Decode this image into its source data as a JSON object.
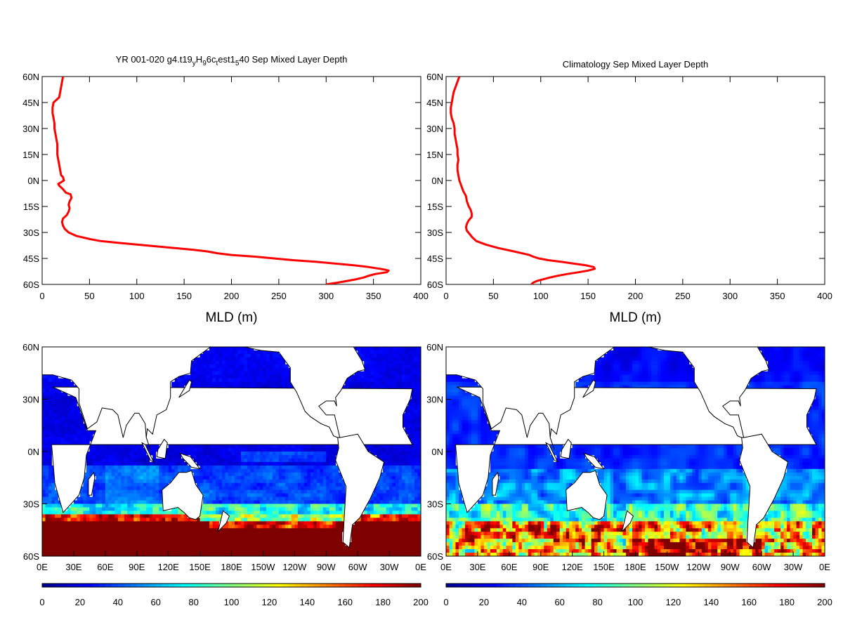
{
  "colors": {
    "profile_line": "#ff0000",
    "axis": "#000000",
    "land": "#ffffff",
    "coast": "#000000",
    "colormap": [
      "#00008f",
      "#0000ff",
      "#007fff",
      "#00ffff",
      "#7fff7f",
      "#ffff00",
      "#ff7f00",
      "#ff0000",
      "#7f0000"
    ]
  },
  "chart_data": [
    {
      "id": "model-profile",
      "type": "line",
      "title": "YR 001-020 g4.t19_H_6c_est1_40 Sep Mixed Layer Depth",
      "title_parts": [
        {
          "text": "YR 001-020 g4.t19",
          "sub": false
        },
        {
          "text": "y",
          "sub": true
        },
        {
          "text": "H",
          "sub": false
        },
        {
          "text": "9",
          "sub": true
        },
        {
          "text": "6c",
          "sub": false
        },
        {
          "text": "t",
          "sub": true
        },
        {
          "text": "est1",
          "sub": false
        },
        {
          "text": "5",
          "sub": true
        },
        {
          "text": "40 Sep Mixed Layer Depth",
          "sub": false
        }
      ],
      "xlabel": "MLD (m)",
      "ylabel": "",
      "xlim": [
        0,
        400
      ],
      "ylim": [
        -60,
        60
      ],
      "x_ticks": [
        "0",
        "50",
        "100",
        "150",
        "200",
        "250",
        "300",
        "350",
        "400"
      ],
      "y_ticks": [
        "60N",
        "45N",
        "30N",
        "15N",
        "0N",
        "15S",
        "30S",
        "45S",
        "60S"
      ],
      "lat": [
        60,
        57,
        54,
        51,
        48,
        45,
        42,
        39,
        36,
        33,
        30,
        27,
        24,
        21,
        18,
        15,
        12,
        9,
        6,
        3,
        2,
        0,
        -1,
        -2,
        -3,
        -5,
        -7,
        -8,
        -10,
        -12,
        -14,
        -16,
        -18,
        -20,
        -22,
        -24,
        -26,
        -28,
        -30,
        -32,
        -34,
        -35,
        -36,
        -37,
        -38,
        -39,
        -40,
        -41,
        -42,
        -43,
        -44,
        -45,
        -46,
        -47,
        -48,
        -49,
        -50,
        -51,
        -51.5,
        -52,
        -53,
        -54,
        -55,
        -56,
        -57,
        -58,
        -59,
        -60
      ],
      "mld": [
        22,
        21,
        20,
        19,
        18,
        12,
        11,
        11,
        12,
        13,
        13,
        14,
        15,
        16,
        16,
        16,
        17,
        18,
        19,
        20,
        22,
        23,
        20,
        17,
        18,
        22,
        25,
        30,
        31,
        29,
        28,
        29,
        28,
        26,
        22,
        21,
        22,
        24,
        28,
        36,
        52,
        62,
        80,
        100,
        120,
        140,
        160,
        175,
        185,
        200,
        225,
        245,
        265,
        290,
        310,
        330,
        345,
        357,
        362,
        366,
        364,
        352,
        345,
        340,
        332,
        322,
        312,
        300
      ]
    },
    {
      "id": "climatology-profile",
      "type": "line",
      "title": "Climatology Sep Mixed Layer Depth",
      "xlabel": "MLD (m)",
      "ylabel": "",
      "xlim": [
        0,
        400
      ],
      "ylim": [
        -60,
        60
      ],
      "x_ticks": [
        "0",
        "50",
        "100",
        "150",
        "200",
        "250",
        "300",
        "350",
        "400"
      ],
      "y_ticks": [
        "60N",
        "45N",
        "30N",
        "15N",
        "0N",
        "15S",
        "30S",
        "45S",
        "60S"
      ],
      "lat": [
        60,
        57,
        54,
        51,
        48,
        45,
        42,
        39,
        36,
        33,
        30,
        27,
        24,
        21,
        18,
        15,
        12,
        9,
        6,
        3,
        0,
        -3,
        -6,
        -9,
        -12,
        -15,
        -17,
        -19,
        -21,
        -23,
        -25,
        -27,
        -29,
        -31,
        -33,
        -35,
        -37,
        -39,
        -41,
        -43,
        -44,
        -45,
        -46,
        -47,
        -48,
        -49,
        -50,
        -51,
        -52,
        -53,
        -54,
        -55,
        -56,
        -57,
        -58,
        -59,
        -60
      ],
      "mld": [
        14,
        12,
        10,
        8,
        7,
        6,
        5,
        5,
        6,
        8,
        9,
        9,
        10,
        11,
        12,
        12,
        13,
        12,
        12,
        13,
        14,
        16,
        18,
        21,
        22,
        24,
        26,
        27,
        27,
        24,
        22,
        21,
        22,
        25,
        28,
        32,
        42,
        55,
        72,
        88,
        92,
        98,
        108,
        122,
        135,
        148,
        156,
        157,
        150,
        140,
        128,
        118,
        110,
        103,
        96,
        92,
        90
      ]
    },
    {
      "id": "model-map",
      "type": "heatmap",
      "title": "",
      "x_ticks": [
        "0E",
        "30E",
        "60E",
        "90E",
        "120E",
        "150E",
        "180E",
        "150W",
        "120W",
        "90W",
        "60W",
        "30W",
        "0E"
      ],
      "y_ticks": [
        "60N",
        "30N",
        "0N",
        "30S",
        "60S"
      ],
      "colorbar_ticks": [
        "0",
        "20",
        "40",
        "60",
        "80",
        "100",
        "120",
        "140",
        "160",
        "180",
        "200"
      ],
      "colorbar_range": [
        0,
        200
      ]
    },
    {
      "id": "climatology-map",
      "type": "heatmap",
      "title": "",
      "x_ticks": [
        "0E",
        "30E",
        "60E",
        "90E",
        "120E",
        "150E",
        "180E",
        "150W",
        "120W",
        "90W",
        "60W",
        "30W",
        "0E"
      ],
      "y_ticks": [
        "60N",
        "30N",
        "0N",
        "30S",
        "60S"
      ],
      "colorbar_ticks": [
        "0",
        "20",
        "40",
        "60",
        "80",
        "100",
        "120",
        "140",
        "160",
        "180",
        "200"
      ],
      "colorbar_range": [
        0,
        200
      ]
    }
  ]
}
